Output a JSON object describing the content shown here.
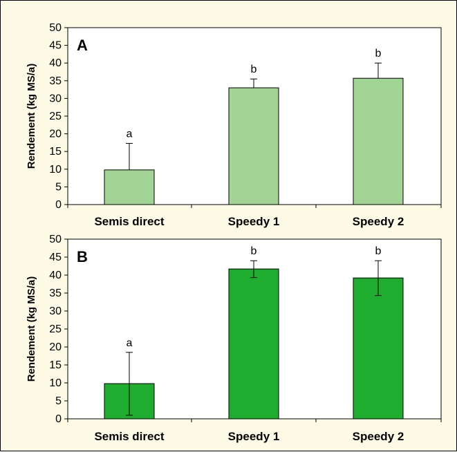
{
  "chart_data": [
    {
      "type": "bar",
      "panel_label": "A",
      "categories": [
        "Semis direct",
        "Speedy 1",
        "Speedy 2"
      ],
      "values": [
        9.8,
        33.0,
        35.7
      ],
      "error_upper": [
        17.3,
        35.5,
        40.0
      ],
      "error_lower": [
        9.8,
        33.0,
        35.7
      ],
      "significance_labels": [
        "a",
        "b",
        "b"
      ],
      "ylabel": "Rendement (kg MS/a)",
      "ylim": [
        0,
        50
      ],
      "yticks": [
        "0",
        "5",
        "10",
        "15",
        "20",
        "25",
        "30",
        "35",
        "40",
        "45",
        "50"
      ],
      "bar_color": "#a0d394",
      "grid": false
    },
    {
      "type": "bar",
      "panel_label": "B",
      "categories": [
        "Semis direct",
        "Speedy 1",
        "Speedy 2"
      ],
      "values": [
        9.8,
        41.7,
        39.2
      ],
      "error_upper": [
        18.5,
        44.0,
        44.0
      ],
      "error_lower": [
        1.0,
        39.3,
        34.3
      ],
      "significance_labels": [
        "a",
        "b",
        "b"
      ],
      "ylabel": "Rendement (kg MS/a)",
      "ylim": [
        0,
        50
      ],
      "yticks": [
        "0",
        "5",
        "10",
        "15",
        "20",
        "25",
        "30",
        "35",
        "40",
        "45",
        "50"
      ],
      "bar_color": "#1ead2e",
      "grid": false
    }
  ]
}
